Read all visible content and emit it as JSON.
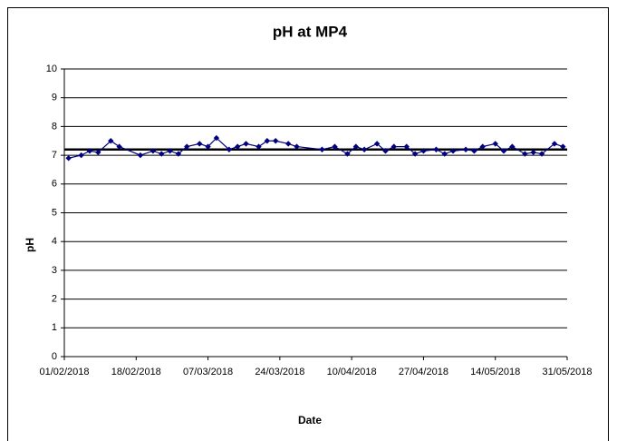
{
  "chart_data": {
    "type": "line",
    "title": "pH at MP4",
    "xlabel": "Date",
    "ylabel": "pH",
    "x": [
      "02/02/2018",
      "05/02/2018",
      "07/02/2018",
      "09/02/2018",
      "12/02/2018",
      "14/02/2018",
      "19/02/2018",
      "22/02/2018",
      "24/02/2018",
      "26/02/2018",
      "28/02/2018",
      "02/03/2018",
      "05/03/2018",
      "07/03/2018",
      "09/03/2018",
      "12/03/2018",
      "14/03/2018",
      "16/03/2018",
      "19/03/2018",
      "21/03/2018",
      "23/03/2018",
      "26/03/2018",
      "28/03/2018",
      "03/04/2018",
      "06/04/2018",
      "09/04/2018",
      "11/04/2018",
      "13/04/2018",
      "16/04/2018",
      "18/04/2018",
      "20/04/2018",
      "23/04/2018",
      "25/04/2018",
      "27/04/2018",
      "30/04/2018",
      "02/05/2018",
      "04/05/2018",
      "07/05/2018",
      "09/05/2018",
      "11/05/2018",
      "14/05/2018",
      "16/05/2018",
      "18/05/2018",
      "21/05/2018",
      "23/05/2018",
      "25/05/2018",
      "28/05/2018",
      "30/05/2018"
    ],
    "series": [
      {
        "color": "#000080",
        "values": [
          6.9,
          7.0,
          7.15,
          7.1,
          7.5,
          7.3,
          7.0,
          7.15,
          7.05,
          7.15,
          7.05,
          7.3,
          7.4,
          7.3,
          7.6,
          7.2,
          7.3,
          7.4,
          7.3,
          7.5,
          7.5,
          7.4,
          7.3,
          7.2,
          7.3,
          7.05,
          7.3,
          7.2,
          7.4,
          7.15,
          7.3,
          7.3,
          7.05,
          7.15,
          7.2,
          7.05,
          7.15,
          7.2,
          7.15,
          7.3,
          7.4,
          7.15,
          7.3,
          7.05,
          7.1,
          7.05,
          7.4,
          7.3
        ]
      }
    ],
    "reference_line": {
      "value": 7.2,
      "color": "#000000"
    },
    "xlim": [
      "01/02/2018",
      "31/05/2018"
    ],
    "xticks": [
      "01/02/2018",
      "18/02/2018",
      "07/03/2018",
      "24/03/2018",
      "10/04/2018",
      "27/04/2018",
      "14/05/2018",
      "31/05/2018"
    ],
    "ylim": [
      0,
      10
    ],
    "yticks": [
      0,
      1,
      2,
      3,
      4,
      5,
      6,
      7,
      8,
      9,
      10
    ],
    "grid": true
  }
}
